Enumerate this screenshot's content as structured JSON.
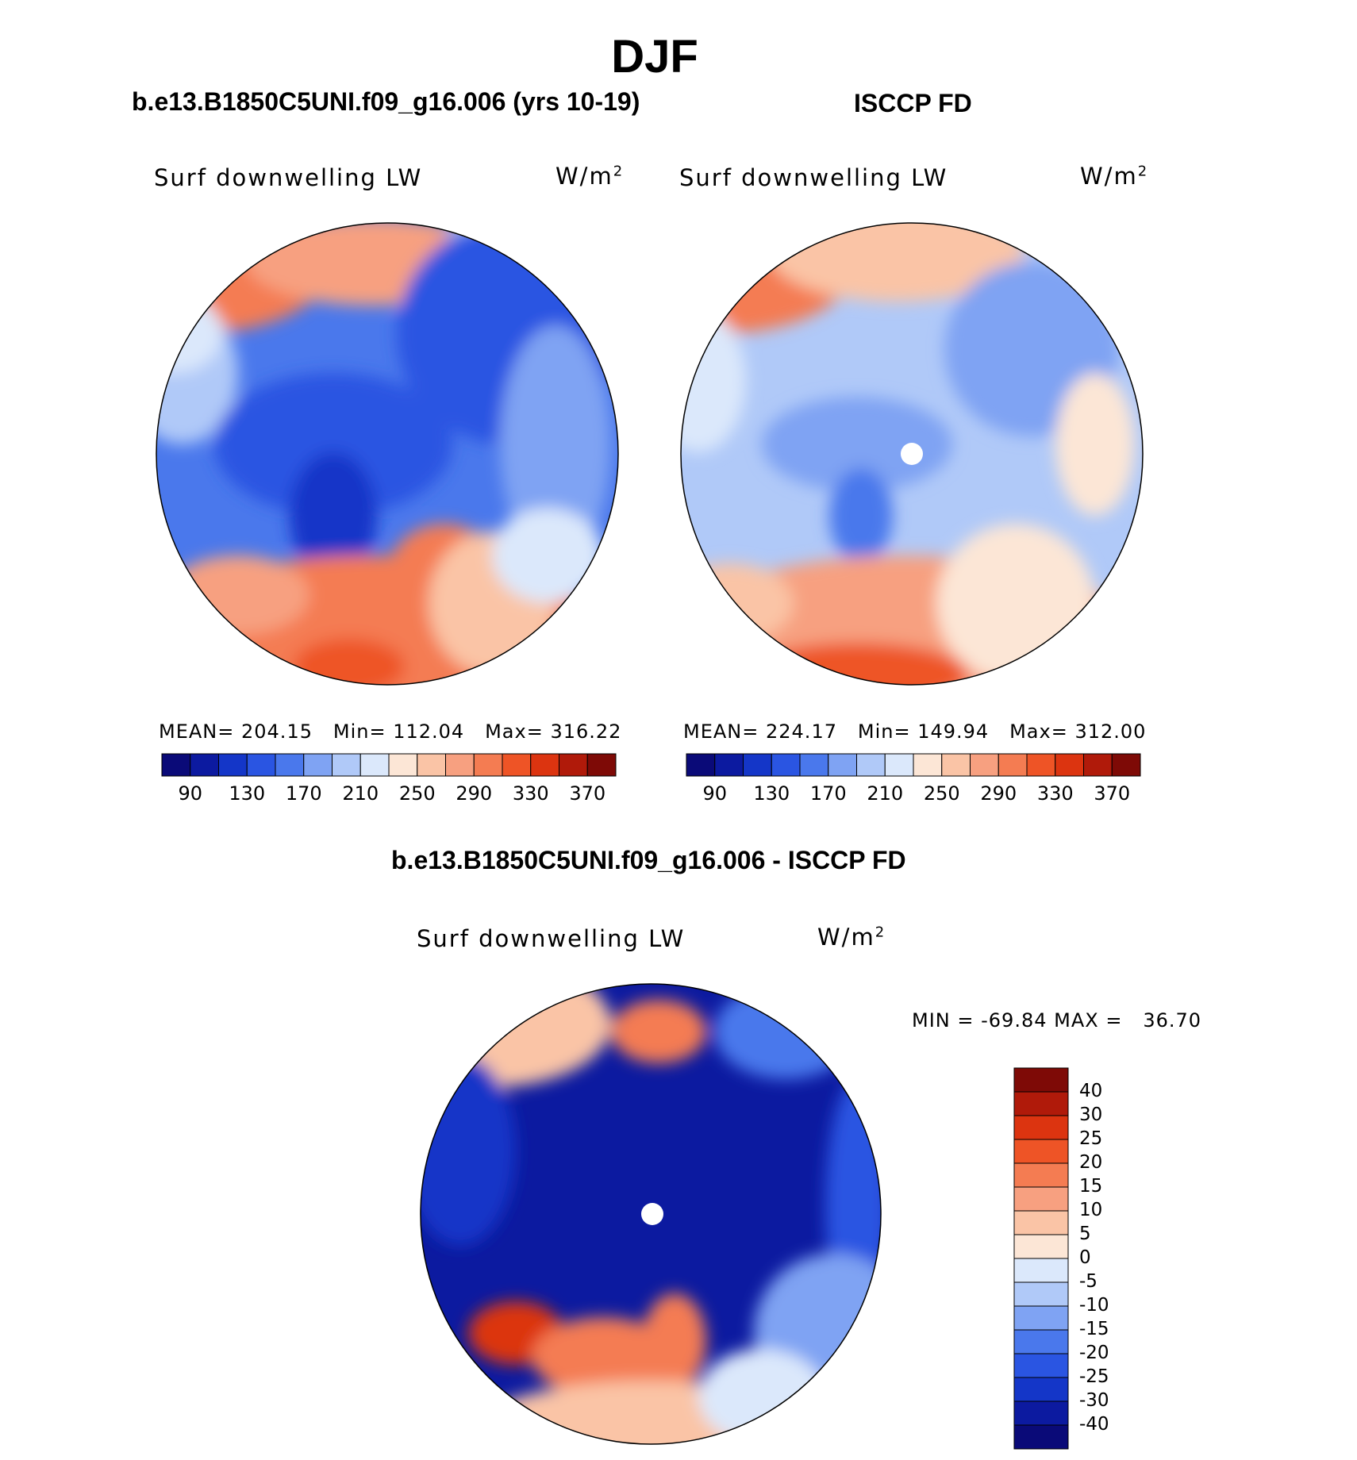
{
  "figure": {
    "title": "DJF",
    "panel_titles": {
      "model": "b.e13.B1850C5UNI.f09_g16.006 (yrs 10-19)",
      "obs": "ISCCP FD",
      "diff": "b.e13.B1850C5UNI.f09_g16.006 - ISCCP FD"
    },
    "variable_label": "Surf downwelling LW",
    "units": "W/m",
    "units_exp": "2"
  },
  "chart_data": [
    {
      "type": "heatmap",
      "projection": "north polar stereographic",
      "panel": "model",
      "stats": {
        "mean_label": "MEAN=",
        "mean": "204.15",
        "min_label": "Min=",
        "min": "112.04",
        "max_label": "Max=",
        "max": "316.22"
      },
      "levels": [
        90,
        110,
        130,
        150,
        170,
        190,
        210,
        230,
        250,
        270,
        290,
        310,
        330,
        350,
        370
      ],
      "tick_labels": [
        "90",
        "130",
        "170",
        "210",
        "250",
        "290",
        "330",
        "370"
      ],
      "colors": [
        "#0a0a78",
        "#0c1aa0",
        "#1436c8",
        "#2a55e2",
        "#4a78ec",
        "#7fa3f3",
        "#b0c9f8",
        "#dbe8fb",
        "#fce6d6",
        "#fac4a6",
        "#f7a080",
        "#f47c52",
        "#ee5426",
        "#dc3410",
        "#b01a0a",
        "#7e0a06"
      ]
    },
    {
      "type": "heatmap",
      "projection": "north polar stereographic",
      "panel": "obs",
      "stats": {
        "mean_label": "MEAN=",
        "mean": "224.17",
        "min_label": "Min=",
        "min": "149.94",
        "max_label": "Max=",
        "max": "312.00"
      },
      "levels": [
        90,
        110,
        130,
        150,
        170,
        190,
        210,
        230,
        250,
        270,
        290,
        310,
        330,
        350,
        370
      ],
      "tick_labels": [
        "90",
        "130",
        "170",
        "210",
        "250",
        "290",
        "330",
        "370"
      ],
      "colors": [
        "#0a0a78",
        "#0c1aa0",
        "#1436c8",
        "#2a55e2",
        "#4a78ec",
        "#7fa3f3",
        "#b0c9f8",
        "#dbe8fb",
        "#fce6d6",
        "#fac4a6",
        "#f7a080",
        "#f47c52",
        "#ee5426",
        "#dc3410",
        "#b01a0a",
        "#7e0a06"
      ]
    },
    {
      "type": "heatmap",
      "projection": "north polar stereographic",
      "panel": "diff",
      "stats": {
        "min_label": "MIN =",
        "min": "-69.84",
        "max_label": "MAX =",
        "max": "36.70"
      },
      "levels": [
        "40",
        "30",
        "25",
        "20",
        "15",
        "10",
        "5",
        "0",
        "-5",
        "-10",
        "-15",
        "-20",
        "-25",
        "-30",
        "-40"
      ],
      "colors": [
        "#7e0a06",
        "#b01a0a",
        "#dc3410",
        "#ee5426",
        "#f47c52",
        "#f7a080",
        "#fac4a6",
        "#fce6d6",
        "#dbe8fb",
        "#b0c9f8",
        "#7fa3f3",
        "#4a78ec",
        "#2a55e2",
        "#1436c8",
        "#0c1aa0",
        "#0a0a78"
      ]
    }
  ]
}
